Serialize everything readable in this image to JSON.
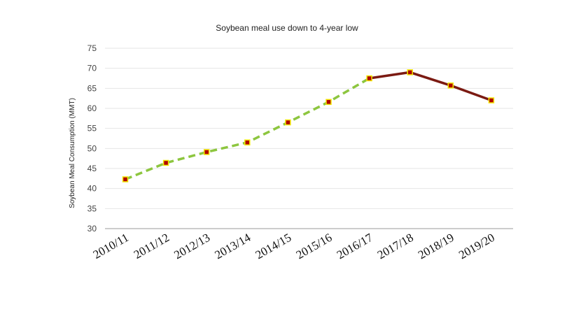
{
  "chart_data": {
    "type": "line",
    "title": "Soybean meal use down to 4-year low",
    "xlabel": "",
    "ylabel": "Soybean Meal Consumption (MMT)",
    "ylim": [
      30,
      75
    ],
    "yticks": [
      30,
      35,
      40,
      45,
      50,
      55,
      60,
      65,
      70,
      75
    ],
    "grid": true,
    "legend": "none",
    "categories": [
      "2010/11",
      "2011/12",
      "2012/13",
      "2013/14",
      "2014/15",
      "2015/16",
      "2016/17",
      "2017/18",
      "2018/19",
      "2019/20"
    ],
    "values": [
      42.3,
      46.4,
      49.1,
      51.5,
      56.5,
      61.6,
      67.5,
      69.0,
      65.7,
      62.0
    ],
    "segments": [
      {
        "from": 0,
        "to": 6,
        "style": "dashed",
        "color": "#8dc63f"
      },
      {
        "from": 6,
        "to": 9,
        "style": "solid",
        "color": "#7b1a12"
      }
    ],
    "marker_fill": "#b00000",
    "marker_stroke": "#f2e600"
  }
}
